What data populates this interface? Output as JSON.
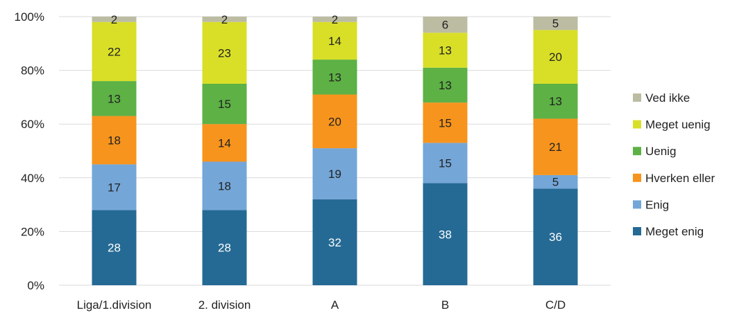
{
  "chart_data": {
    "type": "bar",
    "stacked": true,
    "title": "",
    "xlabel": "",
    "ylabel": "",
    "ylim": [
      0,
      100
    ],
    "y_ticks": [
      "0%",
      "20%",
      "40%",
      "60%",
      "80%",
      "100%"
    ],
    "grid": true,
    "legend_position": "right",
    "categories": [
      "Liga/1.division",
      "2. division",
      "A",
      "B",
      "C/D"
    ],
    "series": [
      {
        "name": "Meget enig",
        "color": "#256a94",
        "label_color": "#ffffff",
        "values": [
          28,
          28,
          32,
          38,
          36
        ]
      },
      {
        "name": "Enig",
        "color": "#74a6d8",
        "label_color": "#222222",
        "values": [
          17,
          18,
          19,
          15,
          5
        ]
      },
      {
        "name": "Hverken eller",
        "color": "#f7941d",
        "label_color": "#222222",
        "values": [
          18,
          14,
          20,
          15,
          21
        ]
      },
      {
        "name": "Uenig",
        "color": "#5db145",
        "label_color": "#222222",
        "values": [
          13,
          15,
          13,
          13,
          13
        ]
      },
      {
        "name": "Meget uenig",
        "color": "#d9df27",
        "label_color": "#222222",
        "values": [
          22,
          23,
          14,
          13,
          20
        ]
      },
      {
        "name": "Ved ikke",
        "color": "#bcbca3",
        "label_color": "#222222",
        "values": [
          2,
          2,
          2,
          6,
          5
        ]
      }
    ]
  }
}
